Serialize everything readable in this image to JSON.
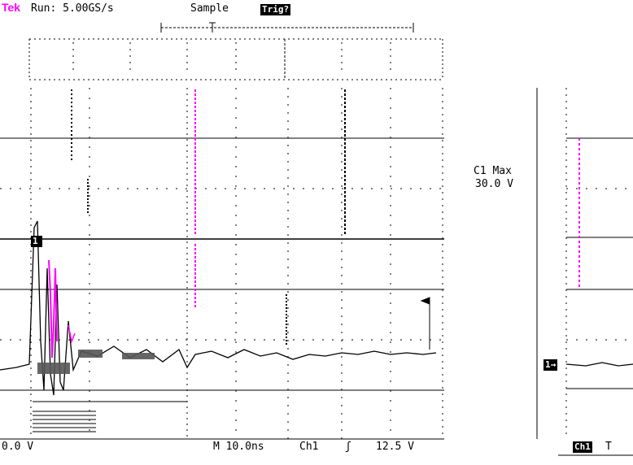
{
  "header": {
    "brand": "Tek",
    "run_status": "Run: 5.00GS/s",
    "acq_mode": "Sample",
    "trig_badge": "Trig?"
  },
  "measurement": {
    "label": "C1 Max",
    "value": "30.0 V"
  },
  "footer": {
    "ch_scale": "0.0 V",
    "timebase": "M 10.0ns",
    "trigger_source": "Ch1",
    "trigger_slope_symbol": "ʃ",
    "trigger_level": "12.5 V",
    "second_panel_channel": "Ch1",
    "second_panel_next": "T"
  },
  "markers": {
    "ch1_marker": "1",
    "second_panel_marker": "1→"
  },
  "colors": {
    "brand": "#ff00ff",
    "trace": "#000000",
    "math_trace": "#ff00ff",
    "grid": "#000000"
  }
}
